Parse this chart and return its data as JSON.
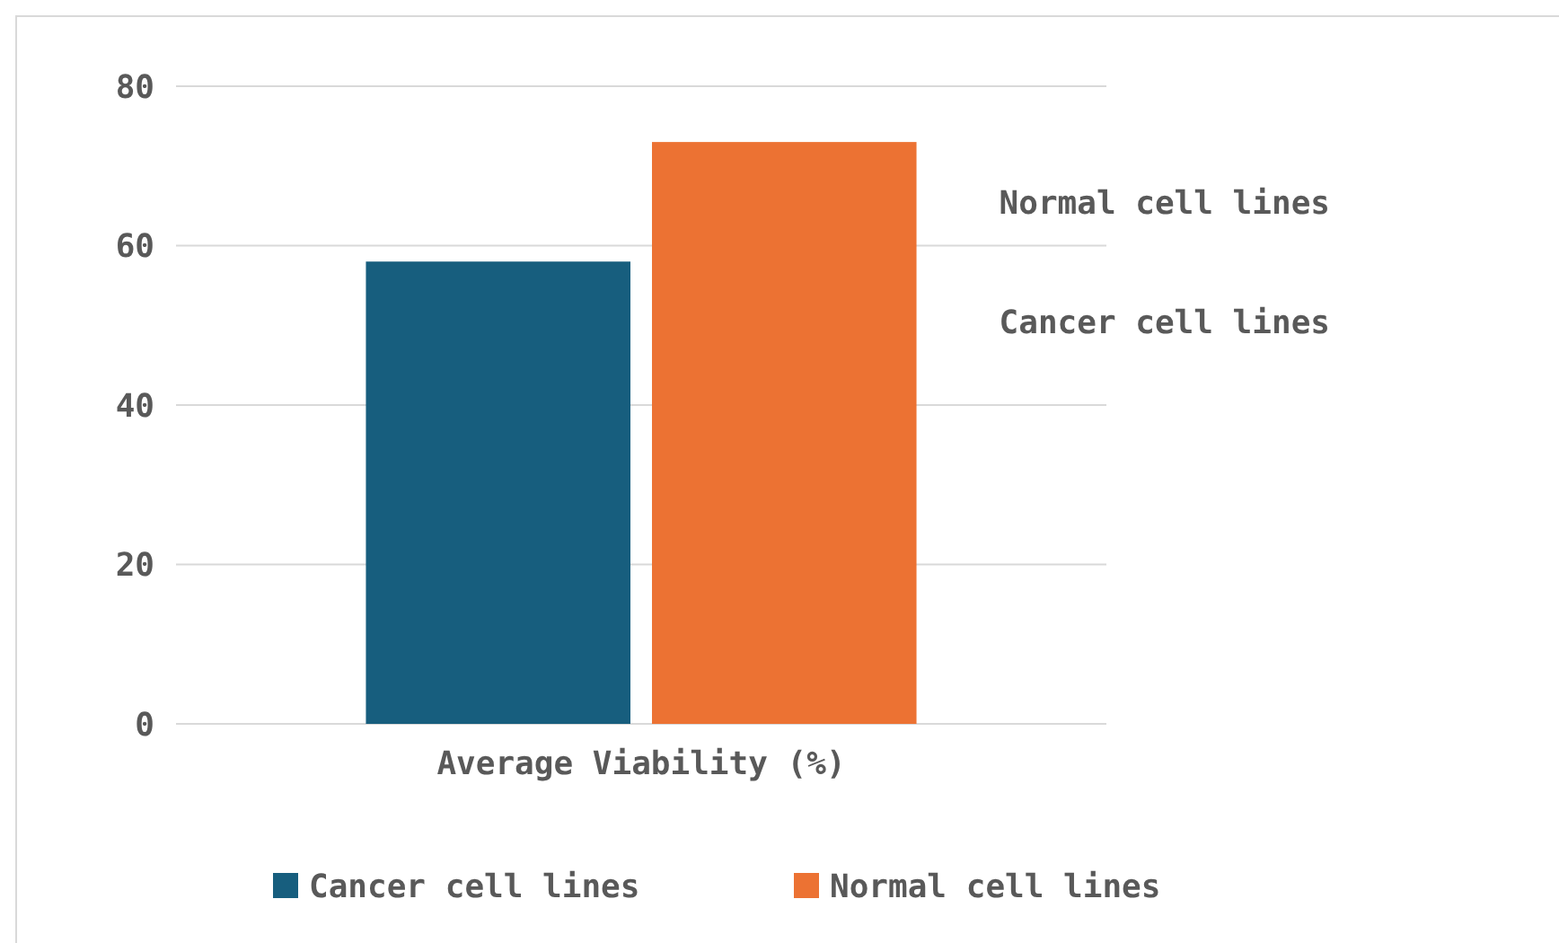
{
  "chart_data": {
    "type": "bar",
    "categories": [
      "Average Viability (%)"
    ],
    "series": [
      {
        "name": "Cancer cell lines",
        "color": "#175e7e",
        "values": [
          58
        ]
      },
      {
        "name": "Normal cell lines",
        "color": "#ec7233",
        "values": [
          73
        ]
      }
    ],
    "ylim": [
      0,
      80
    ],
    "yticks": [
      0,
      20,
      40,
      60,
      80
    ],
    "grid": "y",
    "legend": "bottom"
  }
}
